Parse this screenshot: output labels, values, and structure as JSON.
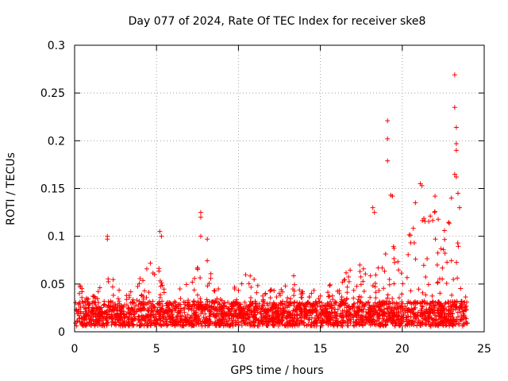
{
  "chart_data": {
    "type": "scatter",
    "title": "Day 077 of 2024, Rate Of TEC Index for receiver ske8",
    "xlabel": "GPS time / hours",
    "ylabel": "ROTI / TECUs",
    "xlim": [
      0,
      25
    ],
    "ylim": [
      0,
      0.3
    ],
    "x_ticks": [
      0,
      5,
      10,
      15,
      20,
      25
    ],
    "x_tick_labels": [
      "0",
      "5",
      "10",
      "15",
      "20",
      "25"
    ],
    "y_ticks": [
      0,
      0.05,
      0.1,
      0.15,
      0.2,
      0.25,
      0.3
    ],
    "y_tick_labels": [
      "0",
      "0.05",
      "0.1",
      "0.15",
      "0.2",
      "0.25",
      "0.3"
    ],
    "grid": true,
    "marker": "+",
    "colors": {
      "series": "#ff0000",
      "grid": "#a0a0a0",
      "axis": "#000000"
    },
    "series": [
      {
        "name": "ROTI",
        "envelope": {
          "x": [
            0,
            0.5,
            1.0,
            1.5,
            2.0,
            2.5,
            3.0,
            3.5,
            4.0,
            4.5,
            5.0,
            5.5,
            6.0,
            6.5,
            7.0,
            7.5,
            8.0,
            8.5,
            9.0,
            9.5,
            10.0,
            10.5,
            11.0,
            11.5,
            12.0,
            12.5,
            13.0,
            13.5,
            14.0,
            14.5,
            15.0,
            15.5,
            16.0,
            16.5,
            17.0,
            17.5,
            18.0,
            18.5,
            19.0,
            19.5,
            20.0,
            20.5,
            21.0,
            21.5,
            22.0,
            22.5,
            23.0,
            23.5,
            24.0
          ],
          "y": [
            0.04,
            0.045,
            0.03,
            0.04,
            0.06,
            0.045,
            0.03,
            0.04,
            0.06,
            0.07,
            0.075,
            0.04,
            0.035,
            0.04,
            0.05,
            0.065,
            0.075,
            0.05,
            0.035,
            0.035,
            0.05,
            0.055,
            0.05,
            0.04,
            0.04,
            0.04,
            0.05,
            0.06,
            0.045,
            0.04,
            0.04,
            0.045,
            0.05,
            0.06,
            0.07,
            0.065,
            0.06,
            0.08,
            0.085,
            0.09,
            0.085,
            0.1,
            0.11,
            0.12,
            0.12,
            0.1,
            0.13,
            0.09,
            0.06
          ]
        },
        "notable_points": [
          {
            "x": 2.0,
            "y": 0.1
          },
          {
            "x": 2.0,
            "y": 0.097
          },
          {
            "x": 5.2,
            "y": 0.105
          },
          {
            "x": 5.3,
            "y": 0.1
          },
          {
            "x": 7.7,
            "y": 0.125
          },
          {
            "x": 7.7,
            "y": 0.12
          },
          {
            "x": 7.7,
            "y": 0.1
          },
          {
            "x": 8.1,
            "y": 0.097
          },
          {
            "x": 18.2,
            "y": 0.13
          },
          {
            "x": 18.3,
            "y": 0.125
          },
          {
            "x": 19.1,
            "y": 0.221
          },
          {
            "x": 19.1,
            "y": 0.202
          },
          {
            "x": 19.1,
            "y": 0.179
          },
          {
            "x": 19.3,
            "y": 0.143
          },
          {
            "x": 19.4,
            "y": 0.142
          },
          {
            "x": 20.8,
            "y": 0.135
          },
          {
            "x": 21.1,
            "y": 0.155
          },
          {
            "x": 21.2,
            "y": 0.153
          },
          {
            "x": 22.0,
            "y": 0.142
          },
          {
            "x": 23.0,
            "y": 0.14
          },
          {
            "x": 23.2,
            "y": 0.269
          },
          {
            "x": 23.2,
            "y": 0.235
          },
          {
            "x": 23.3,
            "y": 0.214
          },
          {
            "x": 23.3,
            "y": 0.197
          },
          {
            "x": 23.3,
            "y": 0.19
          },
          {
            "x": 23.2,
            "y": 0.165
          },
          {
            "x": 23.3,
            "y": 0.162
          },
          {
            "x": 23.4,
            "y": 0.145
          },
          {
            "x": 23.5,
            "y": 0.13
          }
        ]
      }
    ]
  }
}
